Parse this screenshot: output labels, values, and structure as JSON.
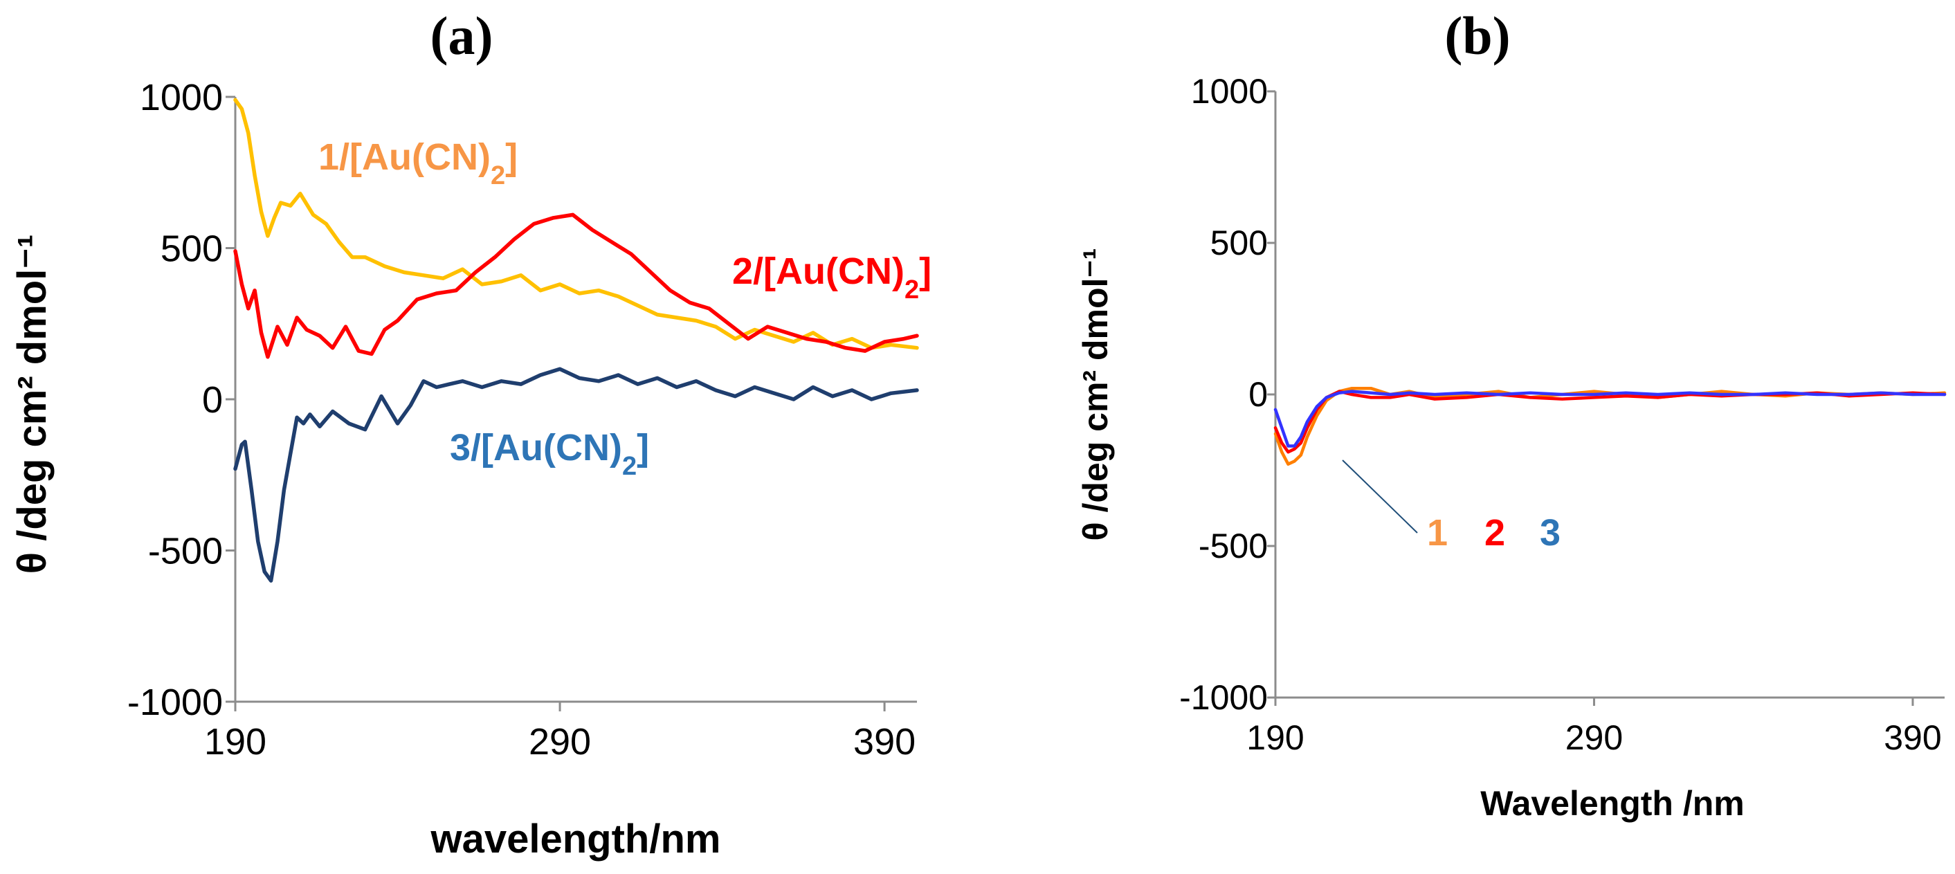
{
  "chart_data": [
    {
      "id": "a",
      "type": "line",
      "title": "(a)",
      "xlabel": "wavelength/nm",
      "ylabel": "θ /deg cm² dmol⁻¹",
      "xlim": [
        190,
        400
      ],
      "ylim": [
        -1000,
        1000
      ],
      "xticks": [
        190,
        290,
        390
      ],
      "yticks": [
        1000,
        500,
        0,
        -500,
        -1000
      ],
      "series": [
        {
          "name": "1/[Au(CN)2]",
          "label_main": "1/[Au(CN)",
          "label_sub": "2",
          "label_end": "]",
          "line_color": "#FFC000",
          "label_color": "#F79646",
          "x": [
            190,
            192,
            194,
            196,
            198,
            200,
            202,
            204,
            207,
            210,
            214,
            218,
            222,
            226,
            230,
            236,
            242,
            248,
            254,
            260,
            266,
            272,
            278,
            284,
            290,
            296,
            302,
            308,
            314,
            320,
            326,
            332,
            338,
            344,
            350,
            356,
            362,
            368,
            374,
            380,
            386,
            392,
            400
          ],
          "values": [
            990,
            960,
            880,
            740,
            620,
            540,
            600,
            650,
            640,
            680,
            610,
            580,
            520,
            470,
            470,
            440,
            420,
            410,
            400,
            430,
            380,
            390,
            410,
            360,
            380,
            350,
            360,
            340,
            310,
            280,
            270,
            260,
            240,
            200,
            230,
            210,
            190,
            220,
            180,
            200,
            170,
            180,
            170
          ]
        },
        {
          "name": "2/[Au(CN)2]",
          "label_main": "2/[Au(CN)",
          "label_sub": "2",
          "label_end": "]",
          "line_color": "#FF0000",
          "label_color": "#FF0000",
          "x": [
            190,
            192,
            194,
            196,
            198,
            200,
            203,
            206,
            209,
            212,
            216,
            220,
            224,
            228,
            232,
            236,
            240,
            246,
            252,
            258,
            264,
            270,
            276,
            282,
            288,
            294,
            300,
            306,
            312,
            318,
            324,
            330,
            336,
            342,
            348,
            354,
            360,
            366,
            372,
            378,
            384,
            390,
            396,
            400
          ],
          "values": [
            490,
            380,
            300,
            360,
            220,
            140,
            240,
            180,
            270,
            230,
            210,
            170,
            240,
            160,
            150,
            230,
            260,
            330,
            350,
            360,
            420,
            470,
            530,
            580,
            600,
            610,
            560,
            520,
            480,
            420,
            360,
            320,
            300,
            250,
            200,
            240,
            220,
            200,
            190,
            170,
            160,
            190,
            200,
            210
          ]
        },
        {
          "name": "3/[Au(CN)2]",
          "label_main": "3/[Au(CN)",
          "label_sub": "2",
          "label_end": "]",
          "line_color": "#1F3E6E",
          "label_color": "#2E75B6",
          "x": [
            190,
            192,
            193,
            195,
            197,
            199,
            201,
            203,
            205,
            207,
            209,
            211,
            213,
            216,
            220,
            225,
            230,
            235,
            240,
            244,
            248,
            252,
            256,
            260,
            266,
            272,
            278,
            284,
            290,
            296,
            302,
            308,
            314,
            320,
            326,
            332,
            338,
            344,
            350,
            356,
            362,
            368,
            374,
            380,
            386,
            392,
            400
          ],
          "values": [
            -230,
            -150,
            -140,
            -300,
            -470,
            -570,
            -600,
            -470,
            -300,
            -180,
            -60,
            -80,
            -50,
            -90,
            -40,
            -80,
            -100,
            10,
            -80,
            -20,
            60,
            40,
            50,
            60,
            40,
            60,
            50,
            80,
            100,
            70,
            60,
            80,
            50,
            70,
            40,
            60,
            30,
            10,
            40,
            20,
            0,
            40,
            10,
            30,
            0,
            20,
            30
          ]
        }
      ]
    },
    {
      "id": "b",
      "type": "line",
      "title": "(b)",
      "xlabel": "Wavelength /nm",
      "ylabel": "θ /deg cm² dmol⁻¹",
      "xlim": [
        190,
        400
      ],
      "ylim": [
        -1000,
        1000
      ],
      "xticks": [
        190,
        290,
        390
      ],
      "yticks": [
        1000,
        500,
        0,
        -500,
        -1000
      ],
      "annotation_labels": [
        {
          "text": "1",
          "color": "#F79646"
        },
        {
          "text": "2",
          "color": "#FF0000"
        },
        {
          "text": "3",
          "color": "#2E75B6"
        }
      ],
      "series": [
        {
          "name": "1",
          "line_color": "#FF7F00",
          "x": [
            190,
            192,
            194,
            196,
            198,
            200,
            203,
            206,
            210,
            214,
            220,
            226,
            232,
            240,
            250,
            260,
            270,
            280,
            290,
            300,
            310,
            320,
            330,
            340,
            350,
            360,
            370,
            380,
            390,
            400
          ],
          "values": [
            -130,
            -190,
            -230,
            -220,
            -200,
            -140,
            -70,
            -20,
            10,
            20,
            20,
            0,
            10,
            -10,
            0,
            10,
            -10,
            0,
            10,
            0,
            -10,
            0,
            10,
            0,
            -5,
            5,
            0,
            5,
            0,
            5
          ]
        },
        {
          "name": "2",
          "line_color": "#FF0000",
          "x": [
            190,
            192,
            194,
            196,
            198,
            200,
            203,
            206,
            210,
            214,
            220,
            226,
            232,
            240,
            250,
            260,
            270,
            280,
            290,
            300,
            310,
            320,
            330,
            340,
            350,
            360,
            370,
            380,
            390,
            400
          ],
          "values": [
            -110,
            -160,
            -190,
            -180,
            -160,
            -110,
            -50,
            -10,
            10,
            0,
            -10,
            -10,
            0,
            -15,
            -10,
            0,
            -10,
            -15,
            -10,
            -5,
            -10,
            0,
            -5,
            0,
            0,
            5,
            -5,
            0,
            5,
            0
          ]
        },
        {
          "name": "3",
          "line_color": "#3333FF",
          "x": [
            190,
            192,
            194,
            196,
            198,
            200,
            203,
            206,
            210,
            214,
            220,
            226,
            232,
            240,
            250,
            260,
            270,
            280,
            290,
            300,
            310,
            320,
            330,
            340,
            350,
            360,
            370,
            380,
            390,
            400
          ],
          "values": [
            -50,
            -110,
            -170,
            -170,
            -140,
            -90,
            -40,
            -10,
            5,
            10,
            5,
            0,
            5,
            0,
            5,
            0,
            5,
            0,
            0,
            5,
            0,
            5,
            0,
            0,
            5,
            0,
            0,
            5,
            0,
            0
          ]
        }
      ]
    }
  ]
}
